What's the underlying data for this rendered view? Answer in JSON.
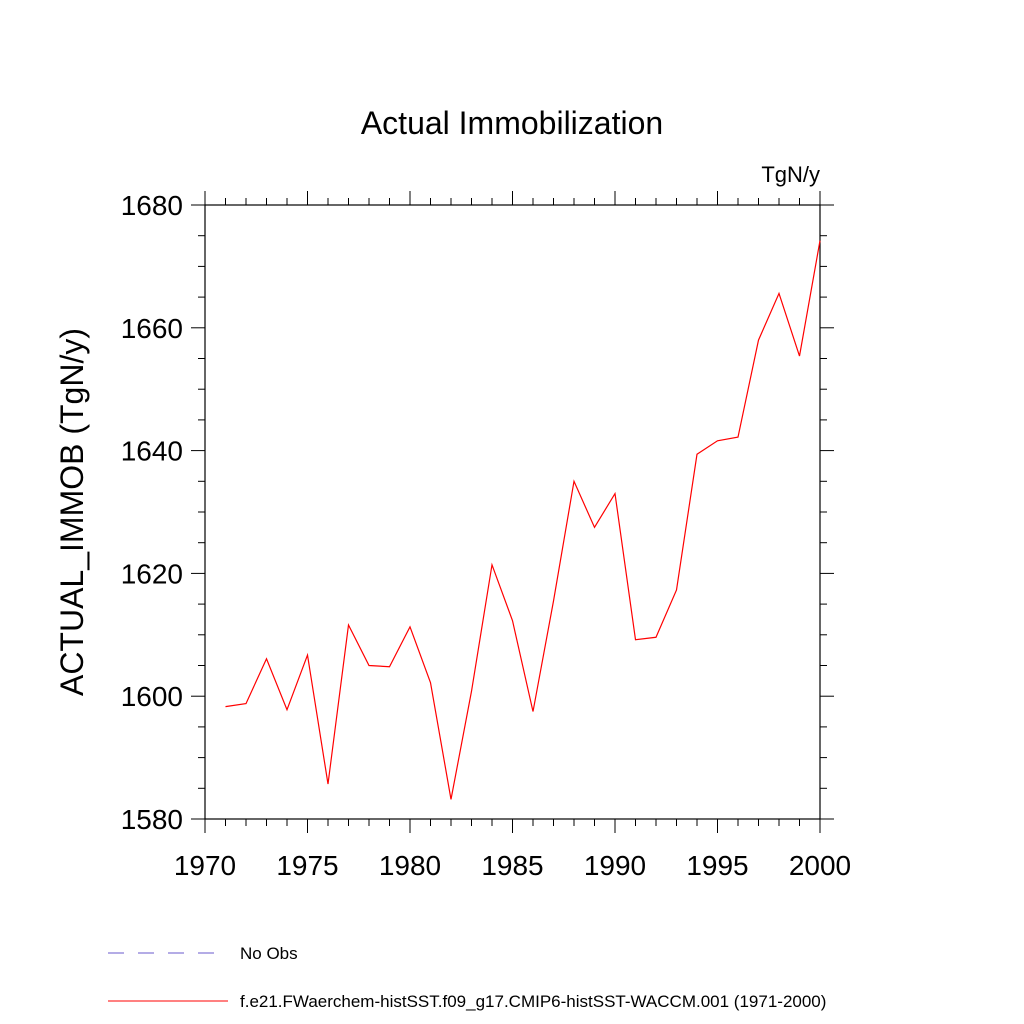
{
  "chart_data": {
    "type": "line",
    "title": "Actual Immobilization",
    "units_label": "TgN/y",
    "ylabel": "ACTUAL_IMMOB  (TgN/y)",
    "xlabel": "",
    "xlim": [
      1970,
      2000
    ],
    "ylim": [
      1580,
      1680
    ],
    "x_ticks": [
      1970,
      1975,
      1980,
      1985,
      1990,
      1995,
      2000
    ],
    "x_tick_labels": [
      "1970",
      "1975",
      "1980",
      "1985",
      "1990",
      "1995",
      "2000"
    ],
    "y_ticks": [
      1580,
      1600,
      1620,
      1640,
      1660,
      1680
    ],
    "y_tick_labels": [
      "1580",
      "1600",
      "1620",
      "1640",
      "1660",
      "1680"
    ],
    "grid": false,
    "legend_position": "bottom-left",
    "legend": [
      {
        "label": "No Obs",
        "style": "dashed",
        "color": "#6a5acd"
      },
      {
        "label": "f.e21.FWaerchem-histSST.f09_g17.CMIP6-histSST-WACCM.001 (1971-2000)",
        "style": "solid",
        "color": "#ff0000"
      }
    ],
    "series": [
      {
        "name": "f.e21.FWaerchem-histSST.f09_g17.CMIP6-histSST-WACCM.001 (1971-2000)",
        "color": "#ff0000",
        "x": [
          1971,
          1972,
          1973,
          1974,
          1975,
          1976,
          1977,
          1978,
          1979,
          1980,
          1981,
          1982,
          1983,
          1984,
          1985,
          1986,
          1987,
          1988,
          1989,
          1990,
          1991,
          1992,
          1993,
          1994,
          1995,
          1996,
          1997,
          1998,
          1999,
          2000
        ],
        "y": [
          1598.3,
          1598.8,
          1606.1,
          1597.8,
          1606.7,
          1585.7,
          1611.6,
          1605.0,
          1604.8,
          1611.3,
          1602.2,
          1583.2,
          1600.8,
          1621.4,
          1612.3,
          1597.5,
          1615.5,
          1635.0,
          1627.5,
          1633.0,
          1609.2,
          1609.6,
          1617.3,
          1639.4,
          1641.6,
          1642.2,
          1658.0,
          1665.6,
          1655.4,
          1674.2
        ]
      }
    ]
  }
}
